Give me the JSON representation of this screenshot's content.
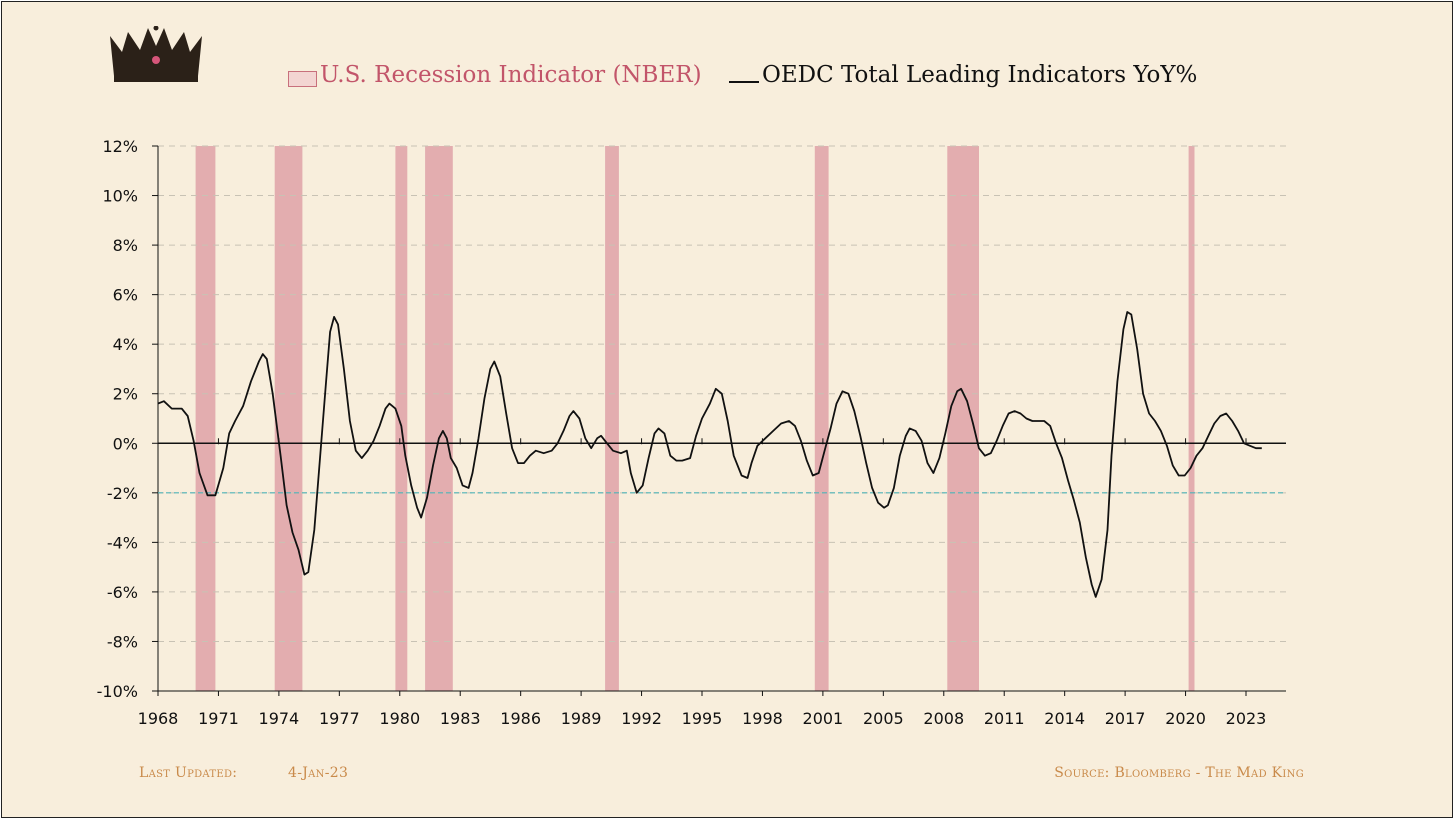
{
  "legend": {
    "recession_label": "U.S. Recession Indicator (NBER)",
    "leading_label": "OEDC Total Leading Indicators YoY%"
  },
  "footer": {
    "last_updated_label": "Last Updated:",
    "last_updated_value": "4-Jan-23",
    "source": "Source: Bloomberg - The Mad King"
  },
  "icons": {
    "logo": "crown-icon"
  },
  "colors": {
    "background": "#f8eedc",
    "recession_fill": "#e0a5aa",
    "line": "#111111",
    "threshold": "#4fb3b8",
    "grid": "#c8c2b4"
  },
  "chart_data": {
    "type": "line",
    "title": "",
    "xlabel": "",
    "ylabel": "",
    "xlim": [
      1968,
      2024.5
    ],
    "ylim": [
      -10,
      12
    ],
    "grid": true,
    "legend_position": "top",
    "x_ticks": [
      "1968",
      "1971",
      "1974",
      "1977",
      "1980",
      "1983",
      "1986",
      "1989",
      "1992",
      "1995",
      "1998",
      "2001",
      "2005",
      "2008",
      "2011",
      "2014",
      "2017",
      "2020",
      "2023"
    ],
    "y_ticks": [
      "12%",
      "10%",
      "8%",
      "6%",
      "4%",
      "2%",
      "0%",
      "-2%",
      "-4%",
      "-6%",
      "-8%",
      "-10%"
    ],
    "threshold": -2,
    "recessions": [
      [
        1969.9,
        1970.9
      ],
      [
        1973.9,
        1975.3
      ],
      [
        1980.0,
        1980.6
      ],
      [
        1981.5,
        1982.9
      ],
      [
        1990.6,
        1991.3
      ],
      [
        2001.2,
        2001.9
      ],
      [
        2007.9,
        2009.5
      ],
      [
        2020.1,
        2020.4
      ]
    ],
    "series": [
      {
        "name": "OEDC Total Leading Indicators YoY%",
        "points": [
          [
            1968.0,
            1.6
          ],
          [
            1968.3,
            1.7
          ],
          [
            1968.7,
            1.4
          ],
          [
            1969.2,
            1.4
          ],
          [
            1969.5,
            1.1
          ],
          [
            1969.8,
            0.1
          ],
          [
            1970.1,
            -1.2
          ],
          [
            1970.5,
            -2.1
          ],
          [
            1970.9,
            -2.1
          ],
          [
            1971.3,
            -1.0
          ],
          [
            1971.6,
            0.4
          ],
          [
            1971.9,
            0.9
          ],
          [
            1972.3,
            1.5
          ],
          [
            1972.7,
            2.5
          ],
          [
            1973.1,
            3.3
          ],
          [
            1973.3,
            3.6
          ],
          [
            1973.5,
            3.4
          ],
          [
            1973.8,
            2.0
          ],
          [
            1974.2,
            -0.5
          ],
          [
            1974.5,
            -2.5
          ],
          [
            1974.8,
            -3.6
          ],
          [
            1975.1,
            -4.3
          ],
          [
            1975.4,
            -5.3
          ],
          [
            1975.6,
            -5.2
          ],
          [
            1975.9,
            -3.5
          ],
          [
            1976.2,
            -0.5
          ],
          [
            1976.5,
            2.5
          ],
          [
            1976.7,
            4.5
          ],
          [
            1976.9,
            5.1
          ],
          [
            1977.1,
            4.8
          ],
          [
            1977.4,
            3.0
          ],
          [
            1977.7,
            0.9
          ],
          [
            1978.0,
            -0.3
          ],
          [
            1978.3,
            -0.6
          ],
          [
            1978.6,
            -0.3
          ],
          [
            1978.9,
            0.1
          ],
          [
            1979.2,
            0.7
          ],
          [
            1979.5,
            1.4
          ],
          [
            1979.7,
            1.6
          ],
          [
            1980.0,
            1.4
          ],
          [
            1980.3,
            0.7
          ],
          [
            1980.5,
            -0.5
          ],
          [
            1980.8,
            -1.7
          ],
          [
            1981.1,
            -2.6
          ],
          [
            1981.3,
            -3.0
          ],
          [
            1981.6,
            -2.2
          ],
          [
            1981.9,
            -0.9
          ],
          [
            1982.2,
            0.2
          ],
          [
            1982.4,
            0.5
          ],
          [
            1982.6,
            0.2
          ],
          [
            1982.8,
            -0.6
          ],
          [
            1983.1,
            -1.0
          ],
          [
            1983.4,
            -1.7
          ],
          [
            1983.7,
            -1.8
          ],
          [
            1983.9,
            -1.2
          ],
          [
            1984.2,
            0.2
          ],
          [
            1984.5,
            1.8
          ],
          [
            1984.8,
            3.0
          ],
          [
            1985.0,
            3.3
          ],
          [
            1985.3,
            2.7
          ],
          [
            1985.6,
            1.2
          ],
          [
            1985.9,
            -0.2
          ],
          [
            1986.2,
            -0.8
          ],
          [
            1986.5,
            -0.8
          ],
          [
            1986.8,
            -0.5
          ],
          [
            1987.1,
            -0.3
          ],
          [
            1987.5,
            -0.4
          ],
          [
            1987.9,
            -0.3
          ],
          [
            1988.2,
            0.0
          ],
          [
            1988.5,
            0.5
          ],
          [
            1988.8,
            1.1
          ],
          [
            1989.0,
            1.3
          ],
          [
            1989.3,
            1.0
          ],
          [
            1989.6,
            0.2
          ],
          [
            1989.9,
            -0.2
          ],
          [
            1990.2,
            0.2
          ],
          [
            1990.4,
            0.3
          ],
          [
            1990.7,
            0.0
          ],
          [
            1991.0,
            -0.3
          ],
          [
            1991.4,
            -0.4
          ],
          [
            1991.7,
            -0.3
          ],
          [
            1991.9,
            -1.2
          ],
          [
            1992.2,
            -2.0
          ],
          [
            1992.5,
            -1.7
          ],
          [
            1992.8,
            -0.6
          ],
          [
            1993.1,
            0.4
          ],
          [
            1993.3,
            0.6
          ],
          [
            1993.6,
            0.4
          ],
          [
            1993.9,
            -0.5
          ],
          [
            1994.2,
            -0.7
          ],
          [
            1994.5,
            -0.7
          ],
          [
            1994.9,
            -0.6
          ],
          [
            1995.2,
            0.3
          ],
          [
            1995.5,
            1.0
          ],
          [
            1995.9,
            1.6
          ],
          [
            1996.2,
            2.2
          ],
          [
            1996.5,
            2.0
          ],
          [
            1996.8,
            0.9
          ],
          [
            1997.1,
            -0.5
          ],
          [
            1997.5,
            -1.3
          ],
          [
            1997.8,
            -1.4
          ],
          [
            1998.0,
            -0.8
          ],
          [
            1998.3,
            -0.1
          ],
          [
            1998.7,
            0.2
          ],
          [
            1999.1,
            0.5
          ],
          [
            1999.5,
            0.8
          ],
          [
            1999.9,
            0.9
          ],
          [
            2000.2,
            0.7
          ],
          [
            2000.5,
            0.1
          ],
          [
            2000.8,
            -0.7
          ],
          [
            2001.1,
            -1.3
          ],
          [
            2001.4,
            -1.2
          ],
          [
            2001.7,
            -0.3
          ],
          [
            2002.0,
            0.6
          ],
          [
            2002.3,
            1.6
          ],
          [
            2002.6,
            2.1
          ],
          [
            2002.9,
            2.0
          ],
          [
            2003.2,
            1.3
          ],
          [
            2003.5,
            0.3
          ],
          [
            2003.8,
            -0.8
          ],
          [
            2004.1,
            -1.8
          ],
          [
            2004.4,
            -2.4
          ],
          [
            2004.7,
            -2.6
          ],
          [
            2004.9,
            -2.5
          ],
          [
            2005.2,
            -1.8
          ],
          [
            2005.5,
            -0.5
          ],
          [
            2005.8,
            0.3
          ],
          [
            2006.0,
            0.6
          ],
          [
            2006.3,
            0.5
          ],
          [
            2006.6,
            0.1
          ],
          [
            2006.9,
            -0.8
          ],
          [
            2007.2,
            -1.2
          ],
          [
            2007.5,
            -0.6
          ],
          [
            2007.8,
            0.4
          ],
          [
            2008.1,
            1.5
          ],
          [
            2008.4,
            2.1
          ],
          [
            2008.6,
            2.2
          ],
          [
            2008.9,
            1.7
          ],
          [
            2009.2,
            0.8
          ],
          [
            2009.5,
            -0.2
          ],
          [
            2009.8,
            -0.5
          ],
          [
            2010.1,
            -0.4
          ],
          [
            2010.4,
            0.1
          ],
          [
            2010.7,
            0.7
          ],
          [
            2011.0,
            1.2
          ],
          [
            2011.3,
            1.3
          ],
          [
            2011.6,
            1.2
          ],
          [
            2011.9,
            1.0
          ],
          [
            2012.2,
            0.9
          ],
          [
            2012.5,
            0.9
          ],
          [
            2012.8,
            0.9
          ],
          [
            2013.1,
            0.7
          ],
          [
            2013.4,
            0.0
          ],
          [
            2013.7,
            -0.6
          ],
          [
            2014.0,
            -1.5
          ],
          [
            2014.3,
            -2.3
          ],
          [
            2014.6,
            -3.2
          ],
          [
            2014.9,
            -4.6
          ],
          [
            2015.2,
            -5.7
          ],
          [
            2015.4,
            -6.2
          ],
          [
            2015.7,
            -5.5
          ],
          [
            2016.0,
            -3.5
          ],
          [
            2016.2,
            -0.5
          ],
          [
            2016.5,
            2.5
          ],
          [
            2016.8,
            4.6
          ],
          [
            2017.0,
            5.3
          ],
          [
            2017.2,
            5.2
          ],
          [
            2017.5,
            3.8
          ],
          [
            2017.8,
            2.0
          ],
          [
            2018.1,
            1.2
          ],
          [
            2018.4,
            0.9
          ],
          [
            2018.7,
            0.5
          ],
          [
            2019.0,
            -0.1
          ],
          [
            2019.3,
            -0.9
          ],
          [
            2019.6,
            -1.3
          ],
          [
            2019.9,
            -1.3
          ],
          [
            2020.2,
            -1.0
          ],
          [
            2020.5,
            -0.5
          ],
          [
            2020.8,
            -0.2
          ],
          [
            2021.1,
            0.3
          ],
          [
            2021.4,
            0.8
          ],
          [
            2021.7,
            1.1
          ],
          [
            2022.0,
            1.2
          ],
          [
            2022.3,
            0.9
          ],
          [
            2022.6,
            0.5
          ],
          [
            2022.9,
            0.0
          ],
          [
            2023.2,
            -0.1
          ],
          [
            2023.5,
            -0.2
          ],
          [
            2023.8,
            -0.2
          ]
        ]
      }
    ]
  }
}
